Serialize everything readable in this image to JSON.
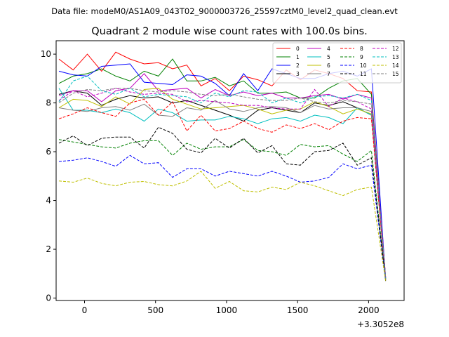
{
  "chart_data": {
    "type": "line",
    "suptitle": "Data file: modeM0/AS1A09_043T02_9000003726_25597cztM0_level2_quad_clean.evt",
    "title": "Quadrant 2 module wise count rates with 100.0s bins.",
    "xlabel": "",
    "ylabel": "",
    "x_offset_label": "+3.3052e8",
    "xlim": [
      -200,
      2250
    ],
    "ylim": [
      -0.1,
      10.55
    ],
    "xticks": [
      0,
      500,
      1000,
      1500,
      2000
    ],
    "yticks": [
      0,
      2,
      4,
      6,
      8,
      10
    ],
    "grid": false,
    "legend": {
      "placement": "top-right",
      "columns": 4
    },
    "x": [
      -180,
      -80,
      20,
      120,
      220,
      320,
      420,
      520,
      620,
      720,
      820,
      920,
      1020,
      1120,
      1220,
      1320,
      1420,
      1520,
      1620,
      1720,
      1820,
      1920,
      2020,
      2120
    ],
    "series": [
      {
        "name": "0",
        "color": "#ff0000",
        "dash": "solid",
        "values": [
          9.8,
          9.35,
          10.0,
          9.3,
          10.08,
          9.8,
          9.6,
          9.65,
          9.4,
          9.55,
          8.7,
          9.0,
          8.5,
          9.1,
          8.95,
          8.7,
          9.35,
          8.95,
          9.35,
          9.2,
          9.0,
          8.5,
          8.45,
          0.85
        ]
      },
      {
        "name": "1",
        "color": "#008000",
        "dash": "solid",
        "values": [
          8.8,
          9.1,
          9.2,
          9.4,
          9.1,
          8.9,
          9.3,
          9.1,
          9.8,
          8.9,
          8.9,
          9.05,
          8.7,
          8.9,
          8.4,
          8.4,
          8.45,
          8.2,
          8.2,
          8.6,
          8.9,
          9.0,
          8.35,
          0.8
        ]
      },
      {
        "name": "2",
        "color": "#0000ff",
        "dash": "solid",
        "values": [
          9.3,
          9.15,
          9.1,
          9.5,
          9.55,
          9.6,
          8.85,
          8.8,
          8.75,
          9.15,
          9.1,
          8.8,
          8.3,
          9.2,
          8.5,
          9.4,
          9.2,
          9.0,
          9.0,
          9.2,
          9.3,
          9.1,
          9.4,
          0.75
        ]
      },
      {
        "name": "3",
        "color": "#000000",
        "dash": "solid",
        "values": [
          8.35,
          8.5,
          8.4,
          7.9,
          8.15,
          8.3,
          8.2,
          8.25,
          8.0,
          8.1,
          7.9,
          7.7,
          7.5,
          7.25,
          7.7,
          7.8,
          7.7,
          7.6,
          8.0,
          7.9,
          8.05,
          7.8,
          7.5,
          0.7
        ]
      },
      {
        "name": "4",
        "color": "#bf00bf",
        "dash": "solid",
        "values": [
          8.3,
          8.5,
          8.5,
          8.05,
          8.5,
          8.6,
          9.2,
          8.5,
          8.55,
          8.6,
          8.2,
          8.55,
          8.3,
          8.45,
          8.3,
          8.4,
          8.2,
          8.2,
          8.3,
          8.35,
          8.15,
          8.35,
          8.2,
          0.85
        ]
      },
      {
        "name": "5",
        "color": "#00bfbf",
        "dash": "solid",
        "values": [
          8.6,
          7.7,
          7.7,
          7.6,
          7.75,
          7.6,
          7.25,
          7.75,
          7.6,
          7.25,
          7.3,
          7.3,
          7.45,
          7.35,
          7.15,
          7.35,
          7.4,
          7.25,
          7.5,
          7.4,
          7.15,
          7.8,
          7.5,
          0.8
        ]
      },
      {
        "name": "6",
        "color": "#bfbf00",
        "dash": "solid",
        "values": [
          7.8,
          8.15,
          8.1,
          7.85,
          8.25,
          7.95,
          8.55,
          8.6,
          8.15,
          7.95,
          7.75,
          7.8,
          7.85,
          7.9,
          7.75,
          7.55,
          7.7,
          7.75,
          8.05,
          7.85,
          7.55,
          7.75,
          7.55,
          0.8
        ]
      },
      {
        "name": "7",
        "color": "#808080",
        "dash": "solid",
        "values": [
          7.8,
          7.7,
          7.65,
          7.8,
          7.85,
          7.7,
          7.95,
          7.5,
          7.45,
          7.8,
          7.7,
          8.1,
          7.75,
          7.65,
          7.8,
          7.85,
          7.8,
          7.6,
          7.9,
          7.75,
          7.8,
          7.8,
          7.65,
          0.8
        ]
      },
      {
        "name": "8",
        "color": "#ff0000",
        "dash": "dashed",
        "values": [
          7.35,
          7.55,
          7.8,
          7.6,
          7.45,
          8.0,
          8.15,
          7.5,
          8.05,
          6.85,
          7.5,
          6.85,
          6.95,
          7.25,
          6.95,
          6.8,
          7.1,
          6.95,
          7.15,
          6.9,
          7.25,
          7.4,
          7.35,
          0.75
        ]
      },
      {
        "name": "9",
        "color": "#008000",
        "dash": "dashed",
        "values": [
          6.5,
          6.4,
          6.3,
          6.2,
          6.15,
          6.35,
          6.45,
          6.45,
          5.85,
          6.35,
          6.1,
          6.2,
          6.2,
          6.5,
          6.05,
          6.0,
          5.85,
          6.3,
          6.2,
          6.25,
          5.9,
          5.6,
          6.05,
          0.7
        ]
      },
      {
        "name": "10",
        "color": "#0000ff",
        "dash": "dashed",
        "values": [
          5.6,
          5.65,
          5.75,
          5.6,
          5.4,
          5.85,
          5.5,
          5.55,
          4.95,
          5.3,
          5.3,
          5.0,
          5.2,
          5.1,
          5.0,
          5.2,
          5.0,
          4.75,
          4.8,
          4.95,
          5.5,
          5.3,
          5.45,
          0.7
        ]
      },
      {
        "name": "11",
        "color": "#000000",
        "dash": "dashed",
        "values": [
          6.35,
          6.65,
          6.25,
          6.55,
          6.6,
          6.6,
          6.15,
          7.0,
          6.75,
          6.1,
          5.95,
          6.55,
          6.15,
          6.55,
          5.95,
          6.25,
          5.5,
          5.45,
          6.0,
          6.05,
          6.35,
          5.45,
          5.75,
          0.75
        ]
      },
      {
        "name": "12",
        "color": "#bf00bf",
        "dash": "dashed",
        "values": [
          8.1,
          8.5,
          8.25,
          8.4,
          8.6,
          8.45,
          8.35,
          8.4,
          8.35,
          8.05,
          8.1,
          8.05,
          8.0,
          7.9,
          7.9,
          7.8,
          7.75,
          7.75,
          8.55,
          7.85,
          8.2,
          8.05,
          7.75,
          0.8
        ]
      },
      {
        "name": "13",
        "color": "#00bfbf",
        "dash": "dashed",
        "values": [
          8.05,
          8.9,
          9.1,
          8.5,
          8.35,
          8.6,
          8.25,
          8.35,
          8.3,
          8.25,
          8.0,
          8.4,
          8.25,
          8.5,
          8.45,
          8.0,
          8.2,
          8.0,
          8.25,
          8.3,
          8.2,
          8.35,
          8.1,
          0.8
        ]
      },
      {
        "name": "14",
        "color": "#bfbf00",
        "dash": "dashed",
        "values": [
          4.8,
          4.75,
          4.92,
          4.7,
          4.6,
          4.75,
          4.78,
          4.65,
          4.6,
          4.8,
          5.2,
          4.5,
          4.78,
          4.4,
          4.35,
          4.55,
          4.45,
          4.75,
          4.6,
          4.4,
          4.2,
          4.45,
          4.55,
          0.7
        ]
      },
      {
        "name": "15",
        "color": "#808080",
        "dash": "dashed",
        "values": [
          8.0,
          8.4,
          8.55,
          8.5,
          8.6,
          8.6,
          8.5,
          8.45,
          8.5,
          8.45,
          8.35,
          8.3,
          8.35,
          8.25,
          8.15,
          8.1,
          8.1,
          8.2,
          8.05,
          8.0,
          8.1,
          8.05,
          7.95,
          0.8
        ]
      }
    ]
  }
}
